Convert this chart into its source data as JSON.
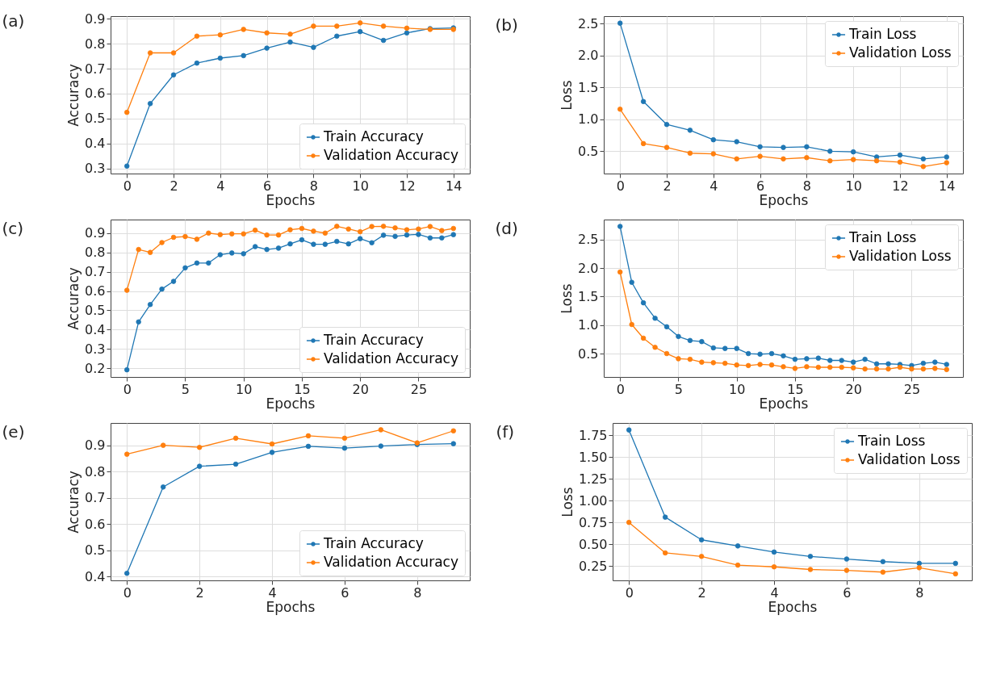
{
  "chart_data": [
    {
      "type": "line",
      "title": "(a)",
      "xlabel": "Epochs",
      "ylabel": "Accuracy",
      "x": [
        0,
        1,
        2,
        3,
        4,
        5,
        6,
        7,
        8,
        9,
        10,
        11,
        12,
        13,
        14
      ],
      "xlim": [
        -0.7,
        14.7
      ],
      "xticks": [
        0,
        2,
        4,
        6,
        8,
        10,
        12,
        14
      ],
      "ylim": [
        0.28,
        0.91
      ],
      "yticks": [
        0.3,
        0.4,
        0.5,
        0.6,
        0.7,
        0.8,
        0.9
      ],
      "grid": true,
      "legend": "bottom right",
      "marker": "circle",
      "line_style": "solid",
      "series": [
        {
          "name": "Train Accuracy",
          "color": "#1f77b4",
          "values": [
            0.31,
            0.56,
            0.675,
            0.722,
            0.742,
            0.752,
            0.782,
            0.806,
            0.785,
            0.83,
            0.848,
            0.813,
            0.843,
            0.86,
            0.863
          ]
        },
        {
          "name": "Validation Accuracy",
          "color": "#ff7f0e",
          "values": [
            0.525,
            0.763,
            0.763,
            0.83,
            0.835,
            0.857,
            0.843,
            0.838,
            0.87,
            0.87,
            0.883,
            0.87,
            0.862,
            0.857,
            0.857
          ]
        }
      ]
    },
    {
      "type": "line",
      "title": "(b)",
      "xlabel": "Epochs",
      "ylabel": "Loss",
      "x": [
        0,
        1,
        2,
        3,
        4,
        5,
        6,
        7,
        8,
        9,
        10,
        11,
        12,
        13,
        14
      ],
      "xlim": [
        -0.7,
        14.7
      ],
      "xticks": [
        0,
        2,
        4,
        6,
        8,
        10,
        12,
        14
      ],
      "ylim": [
        0.15,
        2.62
      ],
      "yticks": [
        0.5,
        {
          "value": 1,
          "label": "1.0"
        },
        1.5,
        {
          "value": 2,
          "label": "2.0"
        },
        2.5
      ],
      "grid": true,
      "legend": "top right",
      "marker": "circle",
      "line_style": "solid",
      "series": [
        {
          "name": "Train Loss",
          "color": "#1f77b4",
          "values": [
            2.51,
            1.28,
            0.92,
            0.83,
            0.68,
            0.65,
            0.57,
            0.56,
            0.57,
            0.5,
            0.49,
            0.41,
            0.44,
            0.38,
            0.41
          ]
        },
        {
          "name": "Validation Loss",
          "color": "#ff7f0e",
          "values": [
            1.16,
            0.62,
            0.56,
            0.47,
            0.46,
            0.38,
            0.42,
            0.38,
            0.4,
            0.35,
            0.37,
            0.35,
            0.33,
            0.26,
            0.32
          ]
        }
      ]
    },
    {
      "type": "line",
      "title": "(c)",
      "xlabel": "Epochs",
      "ylabel": "Accuracy",
      "x": [
        0,
        1,
        2,
        3,
        4,
        5,
        6,
        7,
        8,
        9,
        10,
        11,
        12,
        13,
        14,
        15,
        16,
        17,
        18,
        19,
        20,
        21,
        22,
        23,
        24,
        25,
        26,
        27,
        28
      ],
      "xlim": [
        -1.4,
        29.4
      ],
      "xticks": [
        0,
        5,
        10,
        15,
        20,
        25
      ],
      "ylim": [
        0.155,
        0.97
      ],
      "yticks": [
        0.2,
        0.3,
        0.4,
        0.5,
        0.6,
        0.7,
        0.8,
        0.9
      ],
      "grid": true,
      "legend": "bottom right",
      "marker": "circle",
      "line_style": "solid",
      "series": [
        {
          "name": "Train Accuracy",
          "color": "#1f77b4",
          "values": [
            0.192,
            0.44,
            0.53,
            0.61,
            0.65,
            0.72,
            0.745,
            0.745,
            0.788,
            0.797,
            0.793,
            0.83,
            0.815,
            0.822,
            0.844,
            0.865,
            0.842,
            0.842,
            0.857,
            0.844,
            0.871,
            0.85,
            0.889,
            0.883,
            0.89,
            0.893,
            0.875,
            0.875,
            0.892
          ]
        },
        {
          "name": "Validation Accuracy",
          "color": "#ff7f0e",
          "values": [
            0.604,
            0.815,
            0.8,
            0.851,
            0.878,
            0.882,
            0.868,
            0.9,
            0.892,
            0.896,
            0.896,
            0.915,
            0.89,
            0.89,
            0.917,
            0.924,
            0.91,
            0.9,
            0.935,
            0.921,
            0.907,
            0.934,
            0.935,
            0.927,
            0.917,
            0.921,
            0.934,
            0.913,
            0.924
          ]
        }
      ]
    },
    {
      "type": "line",
      "title": "(d)",
      "xlabel": "Epochs",
      "ylabel": "Loss",
      "x": [
        0,
        1,
        2,
        3,
        4,
        5,
        6,
        7,
        8,
        9,
        10,
        11,
        12,
        13,
        14,
        15,
        16,
        17,
        18,
        19,
        20,
        21,
        22,
        23,
        24,
        25,
        26,
        27,
        28
      ],
      "xlim": [
        -1.4,
        29.4
      ],
      "xticks": [
        0,
        5,
        10,
        15,
        20,
        25
      ],
      "ylim": [
        0.09,
        2.85
      ],
      "yticks": [
        0.5,
        {
          "value": 1,
          "label": "1.0"
        },
        1.5,
        {
          "value": 2,
          "label": "2.0"
        },
        2.5
      ],
      "grid": true,
      "legend": "top right",
      "marker": "circle",
      "line_style": "solid",
      "series": [
        {
          "name": "Train Loss",
          "color": "#1f77b4",
          "values": [
            2.73,
            1.75,
            1.39,
            1.12,
            0.97,
            0.8,
            0.73,
            0.71,
            0.6,
            0.59,
            0.59,
            0.5,
            0.49,
            0.5,
            0.46,
            0.4,
            0.41,
            0.42,
            0.38,
            0.38,
            0.35,
            0.4,
            0.32,
            0.32,
            0.31,
            0.29,
            0.33,
            0.35,
            0.31
          ]
        },
        {
          "name": "Validation Loss",
          "color": "#ff7f0e",
          "values": [
            1.93,
            1.01,
            0.77,
            0.61,
            0.5,
            0.41,
            0.4,
            0.35,
            0.34,
            0.33,
            0.3,
            0.29,
            0.31,
            0.3,
            0.27,
            0.24,
            0.27,
            0.26,
            0.26,
            0.26,
            0.25,
            0.23,
            0.23,
            0.23,
            0.26,
            0.23,
            0.23,
            0.24,
            0.22
          ]
        }
      ]
    },
    {
      "type": "line",
      "title": "(e)",
      "xlabel": "Epochs",
      "ylabel": "Accuracy",
      "x": [
        0,
        1,
        2,
        3,
        4,
        5,
        6,
        7,
        8,
        9
      ],
      "xlim": [
        -0.45,
        9.45
      ],
      "xticks": [
        0,
        2,
        4,
        6,
        8
      ],
      "ylim": [
        0.385,
        0.985
      ],
      "yticks": [
        0.4,
        0.5,
        0.6,
        0.7,
        0.8,
        0.9
      ],
      "grid": true,
      "legend": "bottom right",
      "marker": "circle",
      "line_style": "solid",
      "series": [
        {
          "name": "Train Accuracy",
          "color": "#1f77b4",
          "values": [
            0.412,
            0.741,
            0.82,
            0.828,
            0.873,
            0.896,
            0.889,
            0.897,
            0.903,
            0.906
          ]
        },
        {
          "name": "Validation Accuracy",
          "color": "#ff7f0e",
          "values": [
            0.866,
            0.9,
            0.892,
            0.927,
            0.905,
            0.936,
            0.927,
            0.959,
            0.909,
            0.955
          ]
        }
      ]
    },
    {
      "type": "line",
      "title": "(f)",
      "xlabel": "Epochs",
      "ylabel": "Loss",
      "x": [
        0,
        1,
        2,
        3,
        4,
        5,
        6,
        7,
        8,
        9
      ],
      "xlim": [
        -0.45,
        9.45
      ],
      "xticks": [
        0,
        2,
        4,
        6,
        8
      ],
      "ylim": [
        0.085,
        1.89
      ],
      "yticks": [
        0.25,
        {
          "value": 0.5,
          "label": "0.50"
        },
        0.75,
        {
          "value": 1,
          "label": "1.00"
        },
        1.25,
        {
          "value": 1.5,
          "label": "1.50"
        },
        1.75
      ],
      "grid": true,
      "legend": "top right",
      "marker": "circle",
      "line_style": "solid",
      "series": [
        {
          "name": "Train Loss",
          "color": "#1f77b4",
          "values": [
            1.81,
            0.81,
            0.55,
            0.48,
            0.41,
            0.36,
            0.33,
            0.3,
            0.28,
            0.28
          ]
        },
        {
          "name": "Validation Loss",
          "color": "#ff7f0e",
          "values": [
            0.75,
            0.4,
            0.36,
            0.26,
            0.24,
            0.21,
            0.2,
            0.18,
            0.23,
            0.16
          ]
        }
      ]
    }
  ]
}
